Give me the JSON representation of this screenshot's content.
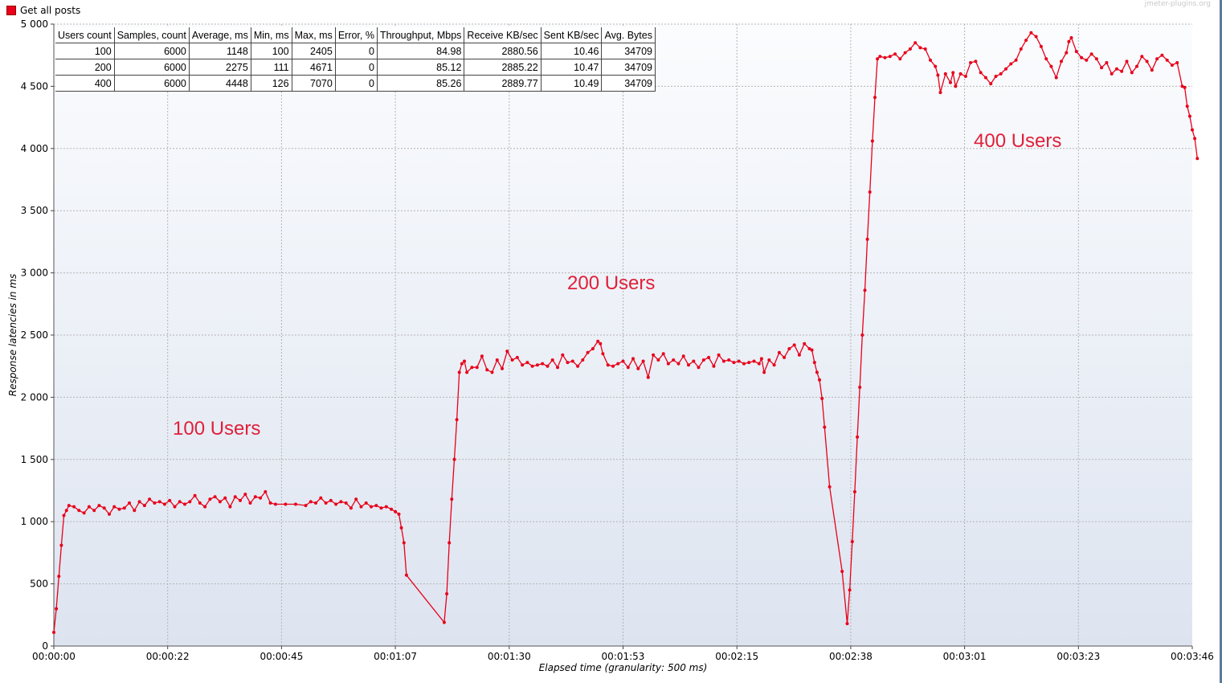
{
  "legend": {
    "series_name": "Get all posts",
    "color": "#e8001a"
  },
  "watermark": "jmeter-plugins.org",
  "stats_table": {
    "columns": [
      "Users count",
      "Samples, count",
      "Average, ms",
      "Min, ms",
      "Max, ms",
      "Error, %",
      "Throughput, Mbps",
      "Receive KB/sec",
      "Sent KB/sec",
      "Avg. Bytes"
    ],
    "rows": [
      [
        "100",
        "6000",
        "1148",
        "100",
        "2405",
        "0",
        "84.98",
        "2880.56",
        "10.46",
        "34709"
      ],
      [
        "200",
        "6000",
        "2275",
        "111",
        "4671",
        "0",
        "85.12",
        "2885.22",
        "10.47",
        "34709"
      ],
      [
        "400",
        "6000",
        "4448",
        "126",
        "7070",
        "0",
        "85.26",
        "2889.77",
        "10.49",
        "34709"
      ]
    ]
  },
  "annotations": [
    "100 Users",
    "200 Users",
    "400 Users"
  ],
  "chart_data": {
    "type": "line",
    "title": "",
    "xlabel": "Elapsed time (granularity: 500 ms)",
    "ylabel": "Response latencies in ms",
    "x_unit": "seconds",
    "xlim": [
      0,
      226
    ],
    "ylim": [
      0,
      5000
    ],
    "grid": true,
    "legend_position": "top-left",
    "y_ticks": [
      0,
      500,
      1000,
      1500,
      2000,
      2500,
      3000,
      3500,
      4000,
      4500,
      5000
    ],
    "y_tick_labels": [
      "0",
      "500",
      "1 000",
      "1 500",
      "2 000",
      "2 500",
      "3 000",
      "3 500",
      "4 000",
      "4 500",
      "5 000"
    ],
    "x_ticks": [
      0,
      22.6,
      45.2,
      67.8,
      90.4,
      113,
      135.6,
      158.2,
      180.8,
      203.4,
      226
    ],
    "x_tick_labels": [
      "00:00:00",
      "00:00:22",
      "00:00:45",
      "00:01:07",
      "00:01:30",
      "00:01:53",
      "00:02:15",
      "00:02:38",
      "00:03:01",
      "00:03:23",
      "00:03:46"
    ],
    "series": [
      {
        "name": "Get all posts",
        "color": "#e8001a",
        "points": [
          [
            0,
            110
          ],
          [
            0.5,
            300
          ],
          [
            1,
            560
          ],
          [
            1.5,
            810
          ],
          [
            2,
            1050
          ],
          [
            2.5,
            1090
          ],
          [
            3,
            1130
          ],
          [
            4,
            1120
          ],
          [
            5,
            1090
          ],
          [
            6,
            1070
          ],
          [
            7,
            1120
          ],
          [
            8,
            1090
          ],
          [
            9,
            1130
          ],
          [
            10,
            1110
          ],
          [
            11,
            1060
          ],
          [
            12,
            1120
          ],
          [
            13,
            1100
          ],
          [
            14,
            1110
          ],
          [
            15,
            1150
          ],
          [
            16,
            1090
          ],
          [
            17,
            1160
          ],
          [
            18,
            1130
          ],
          [
            19,
            1180
          ],
          [
            20,
            1150
          ],
          [
            21,
            1160
          ],
          [
            22,
            1140
          ],
          [
            23,
            1170
          ],
          [
            24,
            1120
          ],
          [
            25,
            1160
          ],
          [
            26,
            1140
          ],
          [
            27,
            1160
          ],
          [
            28,
            1210
          ],
          [
            29,
            1150
          ],
          [
            30,
            1120
          ],
          [
            31,
            1180
          ],
          [
            32,
            1200
          ],
          [
            33,
            1160
          ],
          [
            34,
            1190
          ],
          [
            35,
            1120
          ],
          [
            36,
            1200
          ],
          [
            37,
            1170
          ],
          [
            38,
            1220
          ],
          [
            39,
            1150
          ],
          [
            40,
            1200
          ],
          [
            41,
            1190
          ],
          [
            42,
            1240
          ],
          [
            43,
            1150
          ],
          [
            44,
            1140
          ],
          [
            46,
            1140
          ],
          [
            48,
            1140
          ],
          [
            50,
            1130
          ],
          [
            51,
            1160
          ],
          [
            52,
            1150
          ],
          [
            53,
            1190
          ],
          [
            54,
            1150
          ],
          [
            55,
            1170
          ],
          [
            56,
            1140
          ],
          [
            57,
            1160
          ],
          [
            58,
            1150
          ],
          [
            59,
            1110
          ],
          [
            60,
            1180
          ],
          [
            61,
            1120
          ],
          [
            62,
            1150
          ],
          [
            63,
            1120
          ],
          [
            64,
            1130
          ],
          [
            65,
            1110
          ],
          [
            66,
            1120
          ],
          [
            67,
            1100
          ],
          [
            67.8,
            1080
          ],
          [
            68.5,
            1060
          ],
          [
            69,
            950
          ],
          [
            69.5,
            830
          ],
          [
            70,
            570
          ],
          [
            77.5,
            190
          ],
          [
            78,
            420
          ],
          [
            78.5,
            830
          ],
          [
            79,
            1180
          ],
          [
            79.5,
            1500
          ],
          [
            80,
            1820
          ],
          [
            80.5,
            2200
          ],
          [
            81,
            2270
          ],
          [
            81.5,
            2290
          ],
          [
            82,
            2200
          ],
          [
            83,
            2240
          ],
          [
            84,
            2240
          ],
          [
            85,
            2330
          ],
          [
            86,
            2220
          ],
          [
            87,
            2200
          ],
          [
            88,
            2300
          ],
          [
            89,
            2230
          ],
          [
            90,
            2370
          ],
          [
            91,
            2300
          ],
          [
            92,
            2320
          ],
          [
            93,
            2260
          ],
          [
            94,
            2280
          ],
          [
            95,
            2250
          ],
          [
            96,
            2260
          ],
          [
            97,
            2270
          ],
          [
            98,
            2250
          ],
          [
            99,
            2300
          ],
          [
            100,
            2240
          ],
          [
            101,
            2340
          ],
          [
            102,
            2280
          ],
          [
            103,
            2290
          ],
          [
            104,
            2250
          ],
          [
            105,
            2300
          ],
          [
            106,
            2360
          ],
          [
            107,
            2390
          ],
          [
            108,
            2450
          ],
          [
            108.5,
            2430
          ],
          [
            109,
            2350
          ],
          [
            110,
            2260
          ],
          [
            111,
            2250
          ],
          [
            112,
            2270
          ],
          [
            113,
            2290
          ],
          [
            114,
            2240
          ],
          [
            115,
            2310
          ],
          [
            116,
            2230
          ],
          [
            117,
            2290
          ],
          [
            118,
            2160
          ],
          [
            119,
            2340
          ],
          [
            120,
            2300
          ],
          [
            121,
            2350
          ],
          [
            122,
            2270
          ],
          [
            123,
            2300
          ],
          [
            124,
            2270
          ],
          [
            125,
            2330
          ],
          [
            126,
            2260
          ],
          [
            127,
            2290
          ],
          [
            128,
            2240
          ],
          [
            129,
            2300
          ],
          [
            130,
            2320
          ],
          [
            131,
            2250
          ],
          [
            132,
            2340
          ],
          [
            133,
            2290
          ],
          [
            134,
            2300
          ],
          [
            135,
            2280
          ],
          [
            136,
            2290
          ],
          [
            137,
            2270
          ],
          [
            138,
            2280
          ],
          [
            139,
            2290
          ],
          [
            140,
            2270
          ],
          [
            140.5,
            2310
          ],
          [
            141,
            2200
          ],
          [
            142,
            2300
          ],
          [
            143,
            2260
          ],
          [
            144,
            2360
          ],
          [
            145,
            2320
          ],
          [
            146,
            2390
          ],
          [
            147,
            2420
          ],
          [
            148,
            2340
          ],
          [
            149,
            2430
          ],
          [
            150,
            2390
          ],
          [
            150.5,
            2380
          ],
          [
            151,
            2280
          ],
          [
            151.5,
            2200
          ],
          [
            152,
            2140
          ],
          [
            152.5,
            1990
          ],
          [
            153,
            1760
          ],
          [
            154,
            1280
          ],
          [
            156.5,
            600
          ],
          [
            157.5,
            180
          ],
          [
            158,
            450
          ],
          [
            158.5,
            840
          ],
          [
            159,
            1240
          ],
          [
            159.5,
            1680
          ],
          [
            160,
            2080
          ],
          [
            160.5,
            2500
          ],
          [
            161,
            2860
          ],
          [
            161.5,
            3270
          ],
          [
            162,
            3650
          ],
          [
            162.5,
            4060
          ],
          [
            163,
            4410
          ],
          [
            163.5,
            4720
          ],
          [
            164,
            4740
          ],
          [
            165,
            4730
          ],
          [
            166,
            4740
          ],
          [
            167,
            4760
          ],
          [
            168,
            4720
          ],
          [
            169,
            4770
          ],
          [
            170,
            4800
          ],
          [
            171,
            4850
          ],
          [
            172,
            4810
          ],
          [
            173,
            4800
          ],
          [
            174,
            4710
          ],
          [
            175,
            4660
          ],
          [
            175.5,
            4590
          ],
          [
            176,
            4450
          ],
          [
            177,
            4600
          ],
          [
            178,
            4530
          ],
          [
            178.5,
            4610
          ],
          [
            179,
            4500
          ],
          [
            180,
            4600
          ],
          [
            181,
            4580
          ],
          [
            182,
            4690
          ],
          [
            183,
            4700
          ],
          [
            184,
            4610
          ],
          [
            185,
            4570
          ],
          [
            186,
            4520
          ],
          [
            187,
            4580
          ],
          [
            188,
            4600
          ],
          [
            189,
            4640
          ],
          [
            190,
            4680
          ],
          [
            191,
            4710
          ],
          [
            192,
            4800
          ],
          [
            193,
            4870
          ],
          [
            194,
            4930
          ],
          [
            195,
            4900
          ],
          [
            196,
            4820
          ],
          [
            197,
            4720
          ],
          [
            198,
            4660
          ],
          [
            199,
            4570
          ],
          [
            200,
            4700
          ],
          [
            201,
            4770
          ],
          [
            201.5,
            4860
          ],
          [
            202,
            4890
          ],
          [
            203,
            4780
          ],
          [
            204,
            4730
          ],
          [
            205,
            4710
          ],
          [
            206,
            4760
          ],
          [
            207,
            4720
          ],
          [
            208,
            4650
          ],
          [
            209,
            4690
          ],
          [
            210,
            4600
          ],
          [
            211,
            4640
          ],
          [
            212,
            4620
          ],
          [
            213,
            4700
          ],
          [
            214,
            4610
          ],
          [
            215,
            4660
          ],
          [
            216,
            4740
          ],
          [
            217,
            4700
          ],
          [
            218,
            4630
          ],
          [
            219,
            4720
          ],
          [
            220,
            4750
          ],
          [
            221,
            4710
          ],
          [
            222,
            4670
          ],
          [
            223,
            4690
          ],
          [
            224,
            4500
          ],
          [
            224.5,
            4490
          ],
          [
            225,
            4340
          ],
          [
            225.5,
            4260
          ],
          [
            226,
            4150
          ],
          [
            226.5,
            4080
          ],
          [
            227,
            3920
          ]
        ]
      }
    ]
  }
}
